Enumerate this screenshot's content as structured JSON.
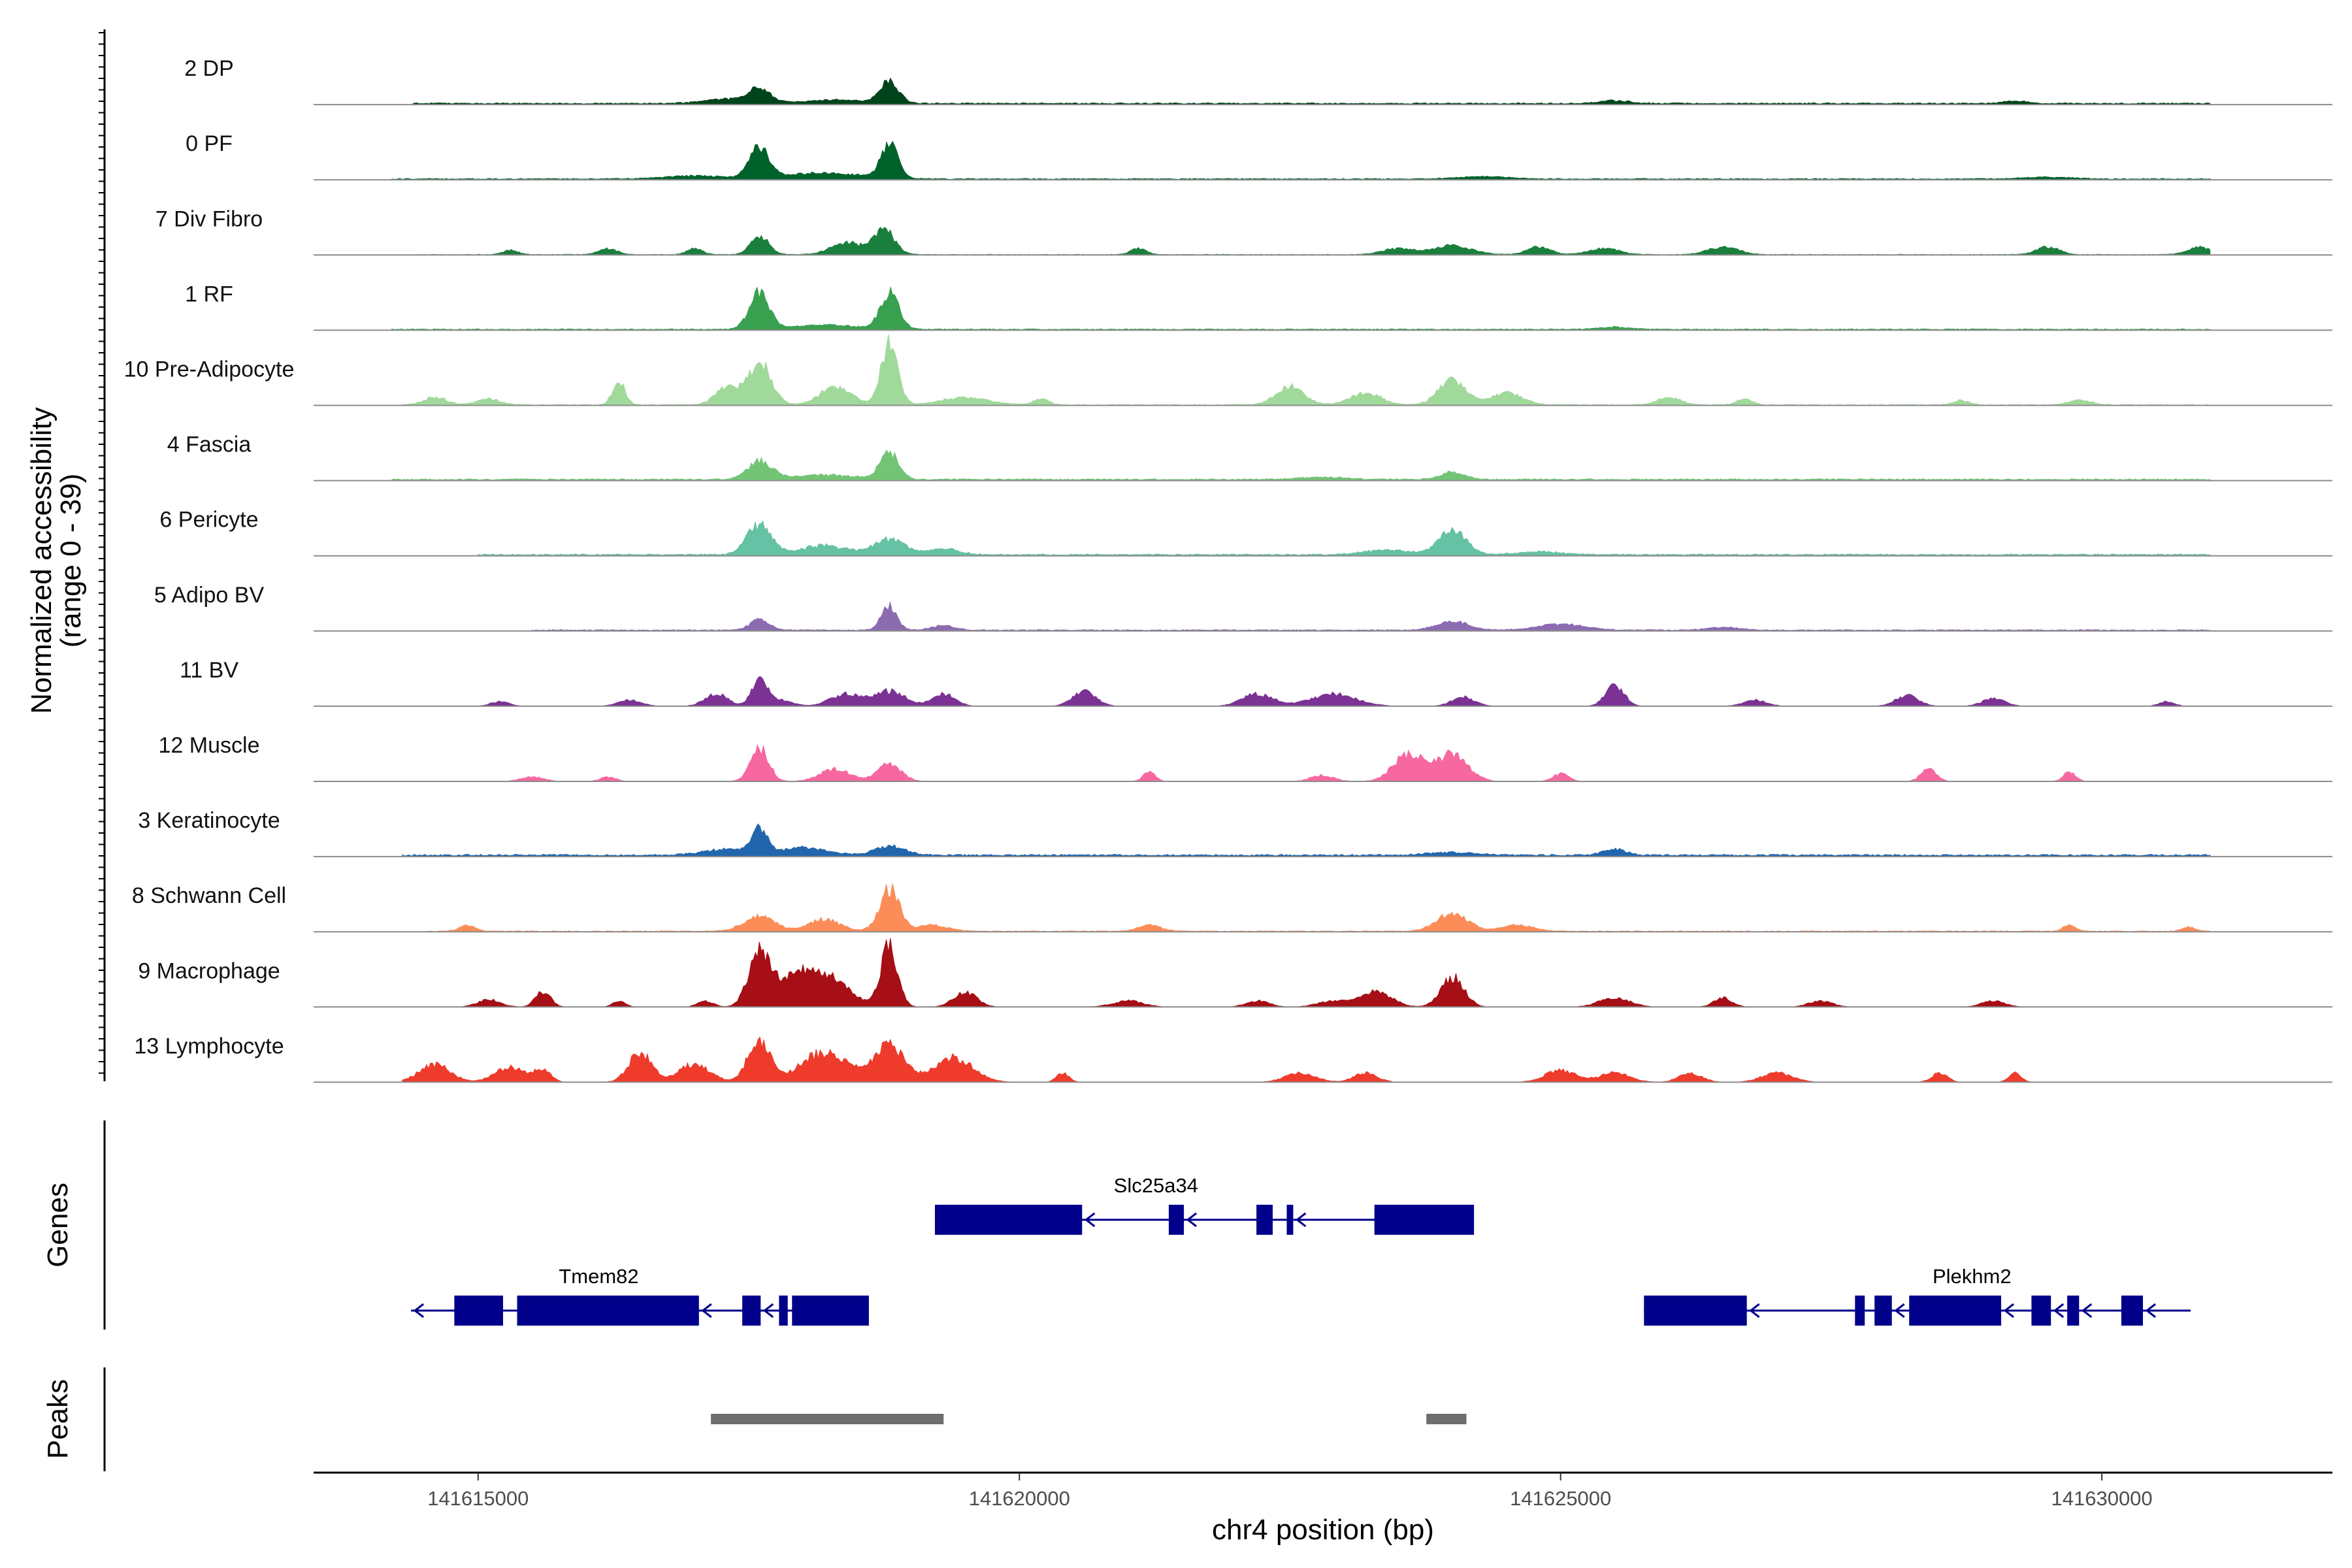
{
  "chart_data": {
    "type": "area",
    "subtype": "genome-coverage-track",
    "chromosome": "chr4",
    "xlabel": "chr4 position (bp)",
    "xlim": [
      141613480,
      141632130
    ],
    "xticks": [
      141615000,
      141620000,
      141625000,
      141630000
    ],
    "xtick_labels": [
      "141615000",
      "141620000",
      "141625000",
      "141630000"
    ],
    "ylabel_line1": "Normalized accessibility",
    "ylabel_line2": "(range 0 - 39)",
    "yrange": [
      0,
      39
    ],
    "genes_label": "Genes",
    "peaks_label": "Peaks",
    "tracks": [
      {
        "name": "2 DP",
        "color": "#00441b",
        "baseline": 0.4,
        "floor": [
          141614400,
          141631000
        ],
        "peaks": [
          [
            141617600,
            4.5,
            140
          ],
          [
            141618800,
            7,
            120
          ],
          [
            141617300,
            1.5,
            300
          ],
          [
            141618300,
            1.2,
            400
          ],
          [
            141625500,
            0.9,
            200
          ],
          [
            141629200,
            0.8,
            150
          ]
        ]
      },
      {
        "name": "0 PF",
        "color": "#00622b",
        "baseline": 0.3,
        "floor": [
          141614200,
          141631000
        ],
        "peaks": [
          [
            141617600,
            10,
            130
          ],
          [
            141618800,
            11,
            110
          ],
          [
            141618200,
            2,
            500
          ],
          [
            141617000,
            1,
            400
          ],
          [
            141624300,
            0.8,
            300
          ],
          [
            141629500,
            0.6,
            300
          ]
        ]
      },
      {
        "name": "7 Div Fibro",
        "color": "#1a7f3c",
        "baseline": 0.15,
        "floor": [
          141614500,
          141631000
        ],
        "peaks": [
          [
            141617600,
            6,
            120
          ],
          [
            141618400,
            4,
            200
          ],
          [
            141618750,
            8,
            140
          ],
          [
            141616200,
            2,
            120
          ],
          [
            141617000,
            2,
            100
          ],
          [
            141623500,
            2,
            200
          ],
          [
            141624000,
            3,
            250
          ],
          [
            141624800,
            2.5,
            150
          ],
          [
            141625400,
            2,
            200
          ],
          [
            141626500,
            2.5,
            200
          ],
          [
            141629500,
            2.5,
            150
          ],
          [
            141630900,
            2.5,
            150
          ],
          [
            141621100,
            2,
            100
          ],
          [
            141615300,
            1.5,
            100
          ]
        ]
      },
      {
        "name": "1 RF",
        "color": "#39a050",
        "baseline": 0.3,
        "floor": [
          141614200,
          141631000
        ],
        "peaks": [
          [
            141617600,
            12,
            130
          ],
          [
            141618800,
            12,
            120
          ],
          [
            141618200,
            1.5,
            400
          ],
          [
            141625500,
            0.8,
            200
          ]
        ]
      },
      {
        "name": "10 Pre-Adipocyte",
        "color": "#a1d99b",
        "baseline": 0.2,
        "floor": [
          141614300,
          141631000
        ],
        "peaks": [
          [
            141616300,
            8,
            80
          ],
          [
            141617600,
            14,
            150
          ],
          [
            141617300,
            6,
            150
          ],
          [
            141618300,
            6,
            200
          ],
          [
            141618800,
            20,
            110
          ],
          [
            141615100,
            2,
            150
          ],
          [
            141619500,
            2.5,
            300
          ],
          [
            141620200,
            2,
            100
          ],
          [
            141622500,
            6,
            180
          ],
          [
            141623200,
            4,
            200
          ],
          [
            141624000,
            8,
            180
          ],
          [
            141624500,
            4,
            200
          ],
          [
            141626000,
            2.5,
            150
          ],
          [
            141626700,
            2,
            100
          ],
          [
            141614600,
            2.5,
            150
          ],
          [
            141628700,
            1.5,
            100
          ],
          [
            141629800,
            1.5,
            150
          ]
        ]
      },
      {
        "name": "4 Fascia",
        "color": "#74c476",
        "baseline": 0.4,
        "floor": [
          141614200,
          141631000
        ],
        "peaks": [
          [
            141617600,
            6,
            160
          ],
          [
            141618800,
            9,
            120
          ],
          [
            141618200,
            1.5,
            400
          ],
          [
            141624000,
            2.5,
            150
          ],
          [
            141622800,
            0.8,
            300
          ]
        ]
      },
      {
        "name": "6 Pericyte",
        "color": "#66c2a4",
        "baseline": 0.4,
        "floor": [
          141615000,
          141631000
        ],
        "peaks": [
          [
            141617600,
            10,
            160
          ],
          [
            141618200,
            3,
            300
          ],
          [
            141618800,
            5,
            200
          ],
          [
            141619300,
            2,
            200
          ],
          [
            141624000,
            8,
            180
          ],
          [
            141623400,
            1.5,
            300
          ],
          [
            141624800,
            1,
            300
          ]
        ]
      },
      {
        "name": "5 Adipo BV",
        "color": "#8c6bb1",
        "baseline": 0.3,
        "floor": [
          141615500,
          141631000
        ],
        "peaks": [
          [
            141617600,
            3.5,
            120
          ],
          [
            141618800,
            8,
            100
          ],
          [
            141619300,
            1.5,
            150
          ],
          [
            141624000,
            3,
            200
          ],
          [
            141625000,
            2,
            300
          ],
          [
            141626500,
            1,
            200
          ]
        ]
      },
      {
        "name": "11 BV",
        "color": "#7b3294",
        "baseline": 0.0,
        "floor": [
          141615000,
          141631000
        ],
        "peaks": [
          [
            141617600,
            9,
            100
          ],
          [
            141617200,
            4,
            150
          ],
          [
            141618400,
            4,
            200
          ],
          [
            141618800,
            5,
            200
          ],
          [
            141619300,
            4,
            150
          ],
          [
            141620600,
            5,
            150
          ],
          [
            141622200,
            4,
            200
          ],
          [
            141622900,
            4,
            300
          ],
          [
            141625500,
            7,
            120
          ],
          [
            141624100,
            3,
            150
          ],
          [
            141616400,
            2,
            150
          ],
          [
            141615200,
            1.5,
            120
          ],
          [
            141617800,
            2,
            150
          ],
          [
            141626800,
            2,
            150
          ],
          [
            141628200,
            3.5,
            150
          ],
          [
            141629000,
            2.5,
            150
          ],
          [
            141630600,
            1.5,
            100
          ]
        ]
      },
      {
        "name": "12 Muscle",
        "color": "#f768a1",
        "baseline": 0.0,
        "floor": [
          141614500,
          141631000
        ],
        "peaks": [
          [
            141617600,
            11,
            120
          ],
          [
            141618300,
            4,
            200
          ],
          [
            141618800,
            6,
            150
          ],
          [
            141623600,
            9,
            200
          ],
          [
            141624000,
            9,
            200
          ],
          [
            141622800,
            2,
            150
          ],
          [
            141625000,
            2.5,
            100
          ],
          [
            141628400,
            4,
            100
          ],
          [
            141629700,
            3,
            80
          ],
          [
            141621200,
            3,
            80
          ],
          [
            141615500,
            1.5,
            150
          ],
          [
            141616200,
            1.5,
            100
          ]
        ]
      },
      {
        "name": "3 Keratinocyte",
        "color": "#2166ac",
        "baseline": 0.5,
        "floor": [
          141614300,
          141631000
        ],
        "peaks": [
          [
            141617600,
            8,
            100
          ],
          [
            141617300,
            2,
            300
          ],
          [
            141618000,
            2.5,
            300
          ],
          [
            141618800,
            3,
            200
          ],
          [
            141625500,
            2,
            150
          ],
          [
            141624000,
            1,
            300
          ]
        ]
      },
      {
        "name": "8 Schwann Cell",
        "color": "#fc8d59",
        "baseline": 0.2,
        "floor": [
          141614500,
          141631000
        ],
        "peaks": [
          [
            141618800,
            14,
            130
          ],
          [
            141617600,
            5,
            200
          ],
          [
            141618200,
            4,
            200
          ],
          [
            141619200,
            2,
            200
          ],
          [
            141624000,
            6,
            200
          ],
          [
            141624600,
            2,
            200
          ],
          [
            141621200,
            2,
            150
          ],
          [
            141614900,
            2,
            100
          ],
          [
            141629700,
            2,
            80
          ],
          [
            141630800,
            1.5,
            80
          ]
        ]
      },
      {
        "name": "9 Macrophage",
        "color": "#a50f15",
        "baseline": 0.0,
        "floor": [
          141614500,
          141631000
        ],
        "peaks": [
          [
            141617600,
            18,
            140
          ],
          [
            141618800,
            20,
            110
          ],
          [
            141618200,
            10,
            300
          ],
          [
            141617900,
            7,
            200
          ],
          [
            141619500,
            5,
            150
          ],
          [
            141615600,
            5,
            100
          ],
          [
            141615100,
            2.5,
            150
          ],
          [
            141623300,
            5,
            200
          ],
          [
            141624000,
            10,
            150
          ],
          [
            141622900,
            2,
            200
          ],
          [
            141626500,
            3,
            120
          ],
          [
            141625500,
            3,
            200
          ],
          [
            141629000,
            2,
            150
          ],
          [
            141616300,
            2,
            80
          ],
          [
            141617100,
            2,
            100
          ],
          [
            141621000,
            2,
            200
          ],
          [
            141622200,
            2,
            150
          ],
          [
            141627400,
            2,
            150
          ]
        ]
      },
      {
        "name": "13 Lymphocyte",
        "color": "#ef3b2c",
        "baseline": 0.0,
        "floor": [
          141614300,
          141631000
        ],
        "peaks": [
          [
            141617600,
            14,
            150
          ],
          [
            141618200,
            10,
            300
          ],
          [
            141618800,
            12,
            200
          ],
          [
            141619400,
            8,
            250
          ],
          [
            141616500,
            10,
            150
          ],
          [
            141617000,
            6,
            200
          ],
          [
            141614600,
            6,
            200
          ],
          [
            141615300,
            5,
            200
          ],
          [
            141615600,
            4,
            100
          ],
          [
            141620400,
            3,
            80
          ],
          [
            141622600,
            3,
            200
          ],
          [
            141623200,
            3,
            150
          ],
          [
            141625000,
            4,
            200
          ],
          [
            141625500,
            3,
            200
          ],
          [
            141626200,
            3,
            150
          ],
          [
            141627000,
            3,
            200
          ],
          [
            141628500,
            3,
            100
          ],
          [
            141629200,
            3,
            80
          ]
        ]
      }
    ],
    "genes": [
      {
        "name": "Slc25a34",
        "strand": "-",
        "start": 141619220,
        "end": 141624200,
        "exons": [
          [
            141619220,
            141620580
          ],
          [
            141621380,
            141621520
          ],
          [
            141622190,
            141622340
          ],
          [
            141622470,
            141622530
          ],
          [
            141623280,
            141624200
          ]
        ]
      },
      {
        "name": "Tmem82",
        "strand": "-",
        "start": 141614380,
        "end": 141618610,
        "exons": [
          [
            141614780,
            141615230
          ],
          [
            141615360,
            141617040
          ],
          [
            141617440,
            141617610
          ],
          [
            141617780,
            141617860
          ],
          [
            141617900,
            141618610
          ]
        ]
      },
      {
        "name": "Plekhm2",
        "strand": "-",
        "start": 141625770,
        "end": 141630820,
        "exons": [
          [
            141625770,
            141626720
          ],
          [
            141627720,
            141627810
          ],
          [
            141627900,
            141628060
          ],
          [
            141628220,
            141629070
          ],
          [
            141629350,
            141629530
          ],
          [
            141629680,
            141629790
          ],
          [
            141630180,
            141630380
          ]
        ]
      }
    ],
    "peaks_regions": [
      [
        141617150,
        141619300
      ],
      [
        141623760,
        141624130
      ]
    ]
  }
}
